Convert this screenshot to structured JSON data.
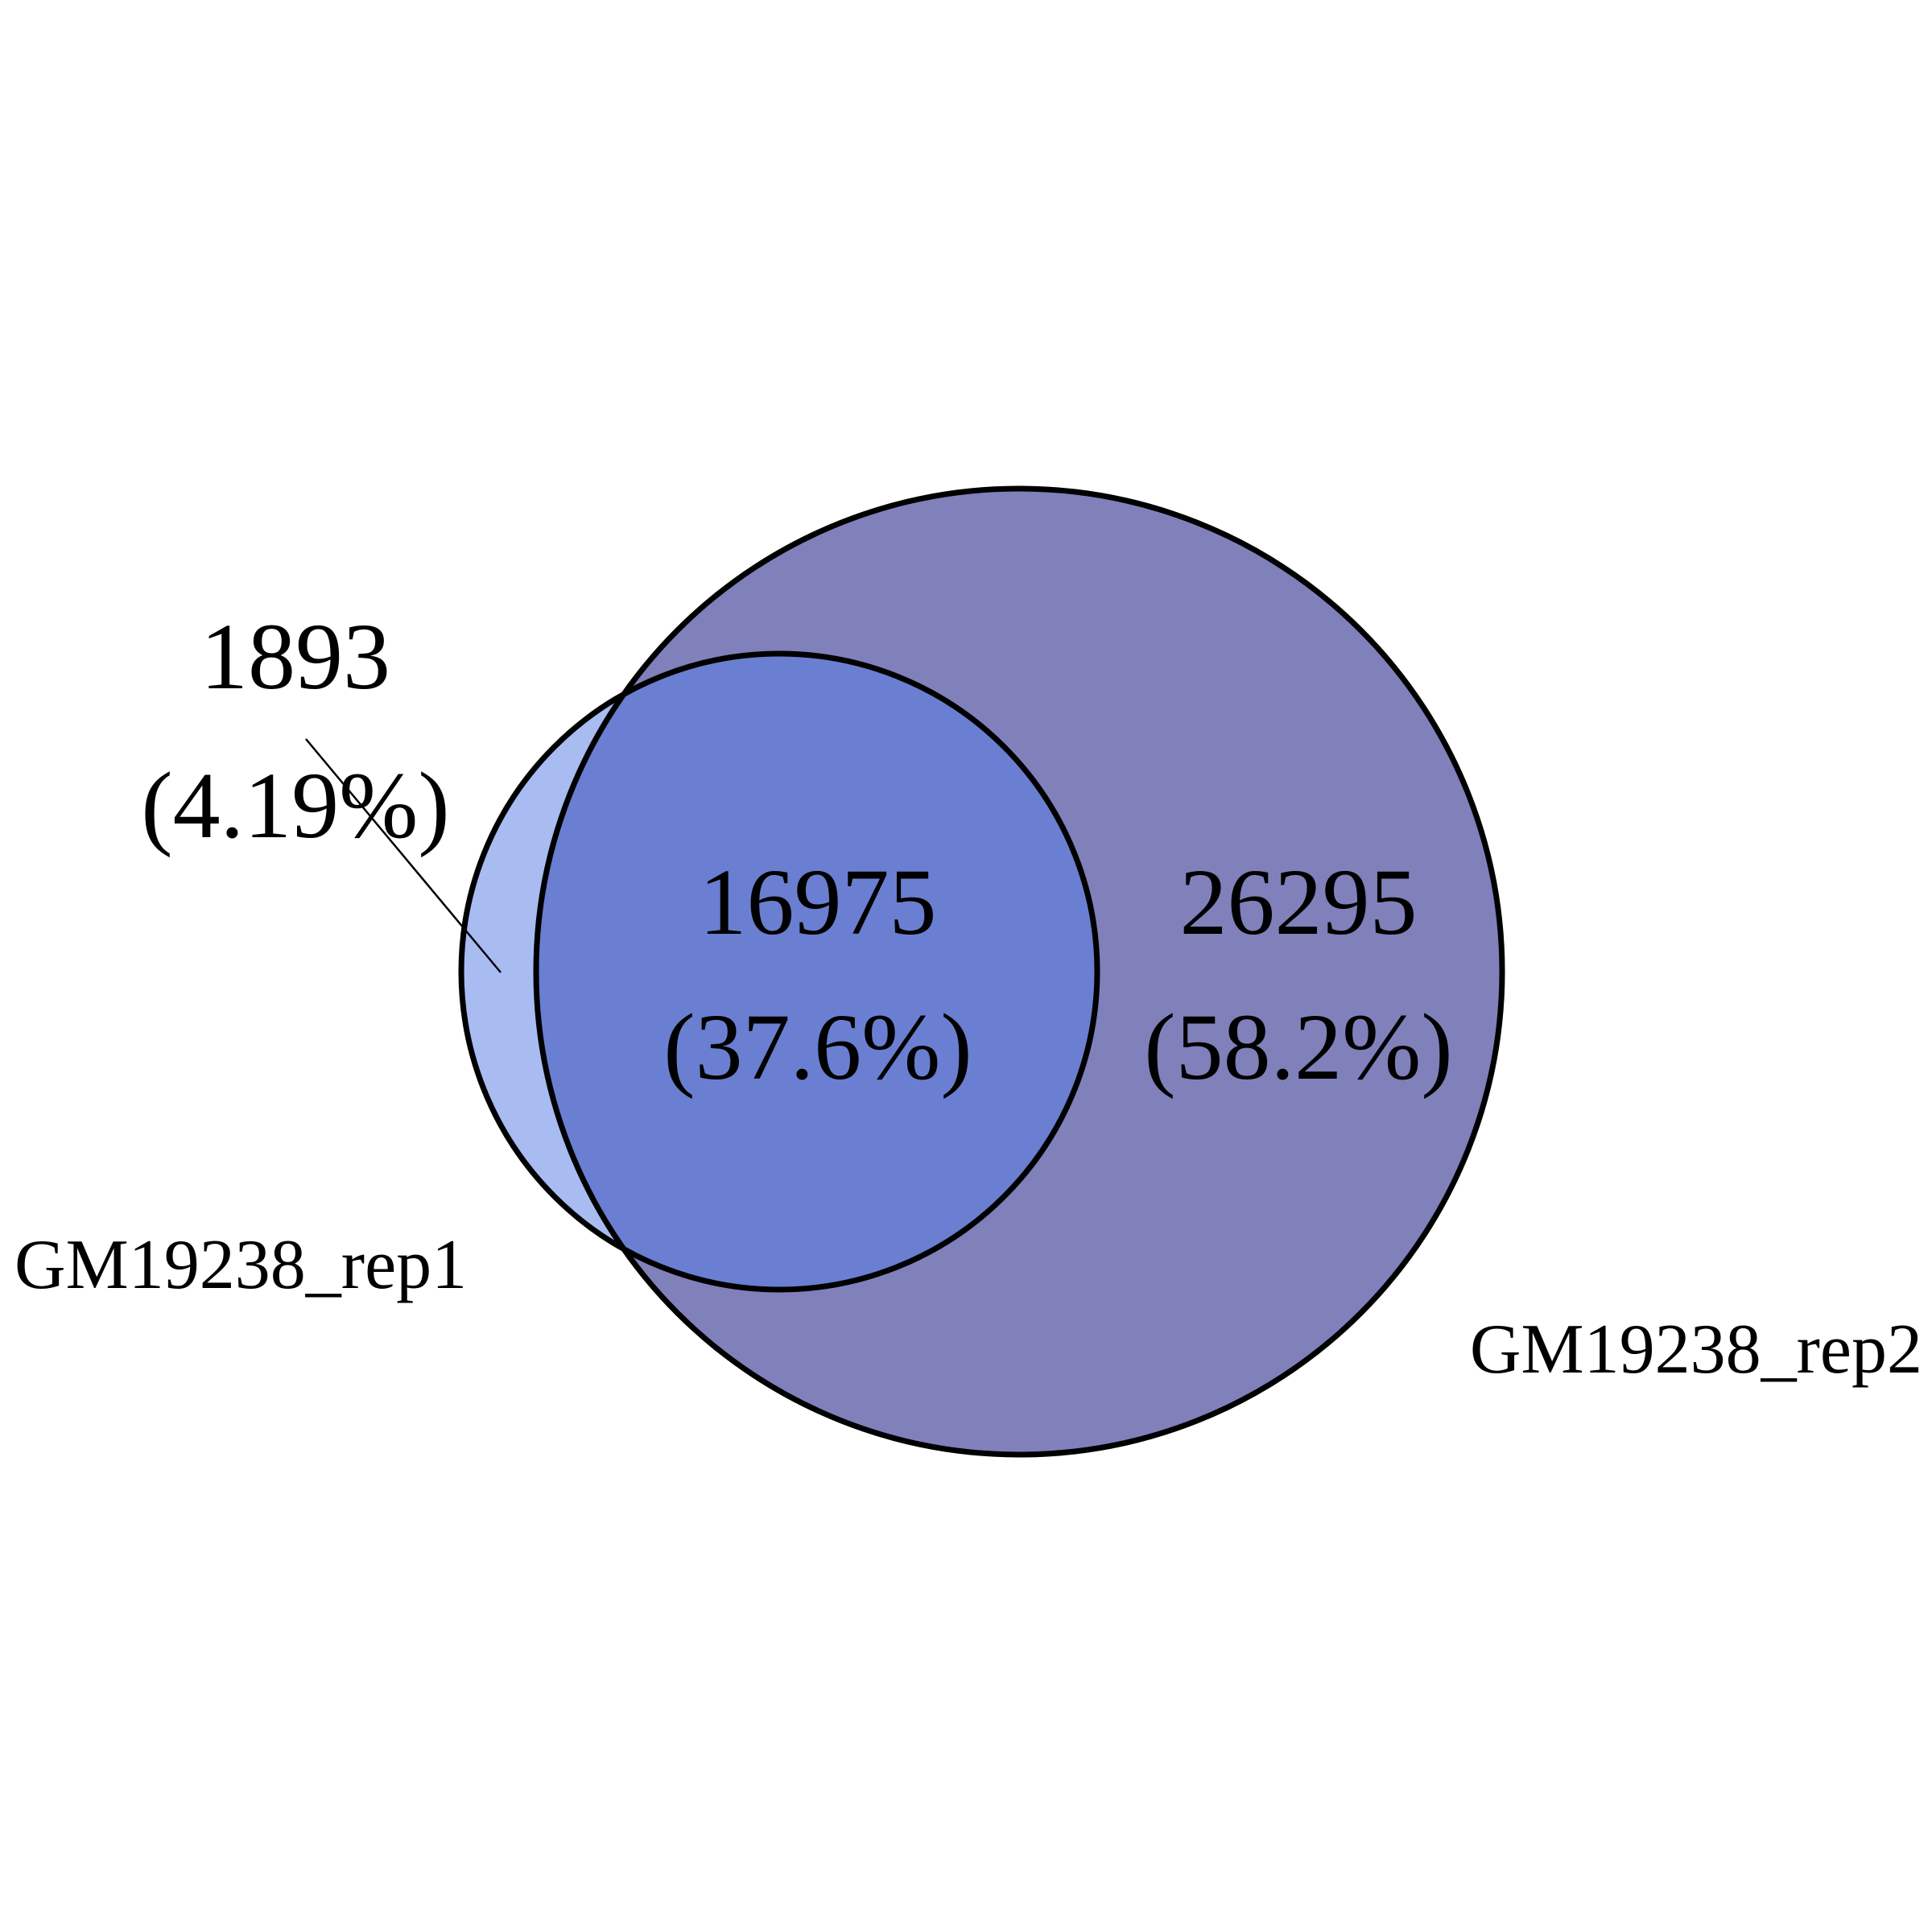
{
  "diagram": {
    "type": "venn",
    "sets": [
      {
        "name": "GM19238_rep1",
        "color": "#6a7fd1"
      },
      {
        "name": "GM19238_rep2",
        "color": "#8080bb"
      }
    ],
    "regions": {
      "rep1_only": {
        "count": "1893",
        "percent": "(4.19%)",
        "color": "#a8bcf2"
      },
      "both": {
        "count": "16975",
        "percent": "(37.6%)",
        "color": "#6a7fd1"
      },
      "rep2_only": {
        "count": "26295",
        "percent": "(58.2%)",
        "color": "#8080bb"
      }
    }
  }
}
